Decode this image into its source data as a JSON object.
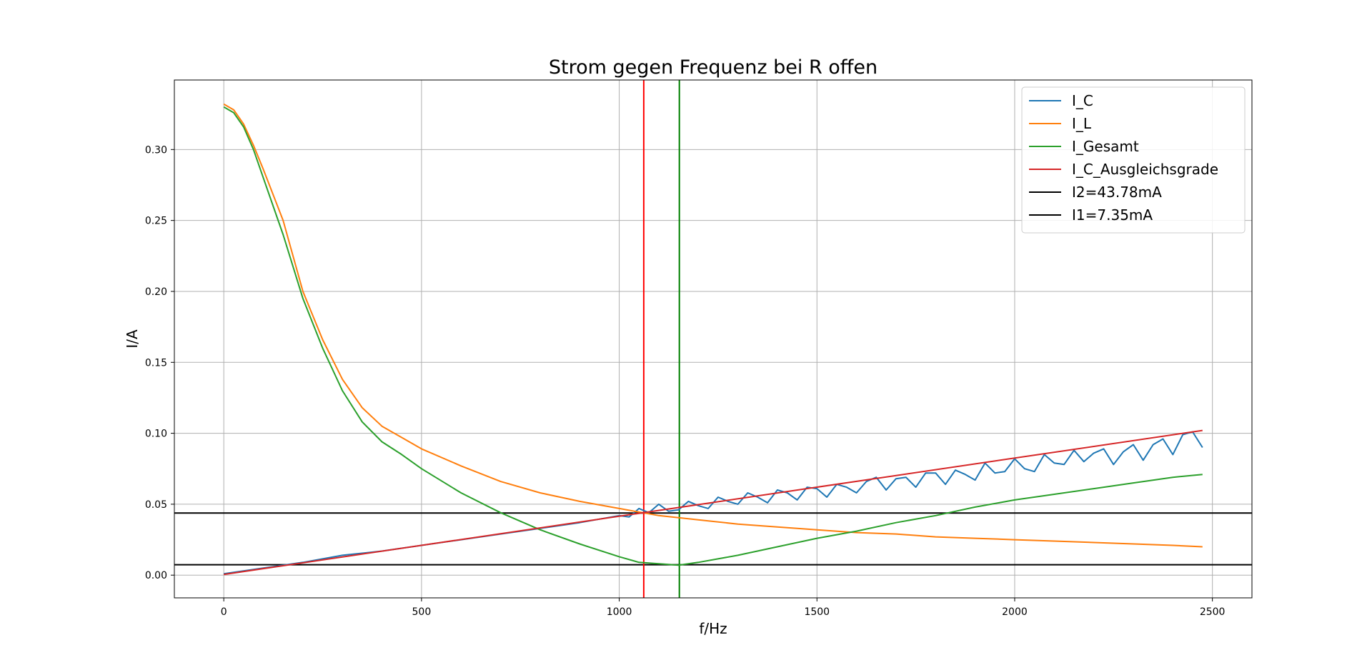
{
  "chart_data": {
    "type": "line",
    "title": "Strom gegen Frequenz bei R offen",
    "xlabel": "f/Hz",
    "ylabel": "I/A",
    "xlim": [
      -125,
      2600
    ],
    "ylim": [
      -0.016,
      0.349
    ],
    "grid": true,
    "legend_position": "top-right",
    "x_ticks": [
      0,
      500,
      1000,
      1500,
      2000,
      2500
    ],
    "x_tick_labels": [
      "0",
      "500",
      "1000",
      "1500",
      "2000",
      "2500"
    ],
    "y_ticks": [
      0.0,
      0.05,
      0.1,
      0.15,
      0.2,
      0.25,
      0.3
    ],
    "y_tick_labels": [
      "0.00",
      "0.05",
      "0.10",
      "0.15",
      "0.20",
      "0.25",
      "0.30"
    ],
    "series": [
      {
        "name": "I_C",
        "color": "#1f77b4",
        "x": [
          0,
          100,
          200,
          300,
          400,
          500,
          600,
          700,
          800,
          900,
          1000,
          1025,
          1050,
          1075,
          1100,
          1125,
          1150,
          1175,
          1200,
          1225,
          1250,
          1275,
          1300,
          1325,
          1350,
          1375,
          1400,
          1425,
          1450,
          1475,
          1500,
          1525,
          1550,
          1575,
          1600,
          1625,
          1650,
          1675,
          1700,
          1725,
          1750,
          1775,
          1800,
          1825,
          1850,
          1875,
          1900,
          1925,
          1950,
          1975,
          2000,
          2025,
          2050,
          2075,
          2100,
          2125,
          2150,
          2175,
          2200,
          2225,
          2250,
          2275,
          2300,
          2325,
          2350,
          2375,
          2400,
          2425,
          2450,
          2475
        ],
        "y": [
          0.001,
          0.005,
          0.009,
          0.014,
          0.017,
          0.021,
          0.025,
          0.029,
          0.033,
          0.037,
          0.042,
          0.041,
          0.047,
          0.044,
          0.05,
          0.045,
          0.046,
          0.052,
          0.049,
          0.047,
          0.055,
          0.052,
          0.05,
          0.058,
          0.055,
          0.051,
          0.06,
          0.058,
          0.053,
          0.062,
          0.061,
          0.055,
          0.064,
          0.062,
          0.058,
          0.066,
          0.069,
          0.06,
          0.068,
          0.069,
          0.062,
          0.072,
          0.072,
          0.064,
          0.074,
          0.071,
          0.067,
          0.079,
          0.072,
          0.073,
          0.082,
          0.075,
          0.073,
          0.085,
          0.079,
          0.078,
          0.088,
          0.08,
          0.086,
          0.089,
          0.078,
          0.087,
          0.092,
          0.081,
          0.092,
          0.096,
          0.085,
          0.099,
          0.101,
          0.09
        ]
      },
      {
        "name": "I_L",
        "color": "#ff7f0e",
        "x": [
          0,
          25,
          50,
          75,
          100,
          150,
          200,
          250,
          300,
          350,
          400,
          450,
          500,
          600,
          700,
          800,
          900,
          1000,
          1100,
          1200,
          1300,
          1400,
          1500,
          1600,
          1700,
          1800,
          1900,
          2000,
          2100,
          2200,
          2300,
          2400,
          2475
        ],
        "y": [
          0.332,
          0.328,
          0.318,
          0.303,
          0.286,
          0.25,
          0.2,
          0.166,
          0.138,
          0.118,
          0.105,
          0.097,
          0.089,
          0.077,
          0.066,
          0.058,
          0.052,
          0.047,
          0.042,
          0.039,
          0.036,
          0.034,
          0.032,
          0.03,
          0.029,
          0.027,
          0.026,
          0.025,
          0.024,
          0.023,
          0.022,
          0.021,
          0.02
        ]
      },
      {
        "name": "I_Gesamt",
        "color": "#2ca02c",
        "x": [
          0,
          25,
          50,
          75,
          100,
          150,
          200,
          250,
          300,
          350,
          400,
          450,
          500,
          600,
          700,
          800,
          900,
          1000,
          1050,
          1100,
          1150,
          1200,
          1300,
          1400,
          1500,
          1600,
          1700,
          1800,
          1900,
          2000,
          2100,
          2200,
          2300,
          2400,
          2475
        ],
        "y": [
          0.33,
          0.326,
          0.316,
          0.3,
          0.28,
          0.24,
          0.195,
          0.16,
          0.13,
          0.108,
          0.094,
          0.085,
          0.075,
          0.058,
          0.044,
          0.032,
          0.022,
          0.013,
          0.009,
          0.008,
          0.007,
          0.009,
          0.014,
          0.02,
          0.026,
          0.031,
          0.037,
          0.042,
          0.048,
          0.053,
          0.057,
          0.061,
          0.065,
          0.069,
          0.071
        ]
      },
      {
        "name": "I_C_Ausgleichsgrade",
        "color": "#d62728",
        "x": [
          0,
          2475
        ],
        "y": [
          0.0005,
          0.102
        ]
      }
    ],
    "hlines": [
      {
        "name": "I2=43.78mA",
        "y": 0.04378,
        "color": "#000000"
      },
      {
        "name": "I1=7.35mA",
        "y": 0.00735,
        "color": "#000000"
      }
    ],
    "vlines": [
      {
        "x": 1062,
        "color": "#ff0000"
      },
      {
        "x": 1152,
        "color": "#008000"
      }
    ]
  }
}
